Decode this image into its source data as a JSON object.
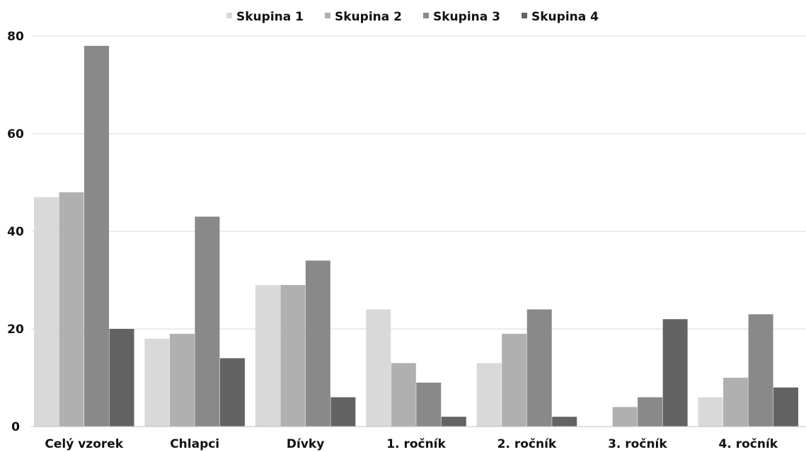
{
  "chart_data": {
    "type": "bar",
    "categories": [
      "Celý vzorek",
      "Chlapci",
      "Dívky",
      "1. ročník",
      "2. ročník",
      "3. ročník",
      "4. ročník"
    ],
    "series": [
      {
        "name": "Skupina 1",
        "color": "#d9d9d9",
        "values": [
          47,
          18,
          29,
          24,
          13,
          0,
          6
        ]
      },
      {
        "name": "Skupina 2",
        "color": "#b0b0b0",
        "values": [
          48,
          19,
          29,
          13,
          19,
          4,
          10
        ]
      },
      {
        "name": "Skupina 3",
        "color": "#898989",
        "values": [
          78,
          43,
          34,
          9,
          24,
          6,
          23
        ]
      },
      {
        "name": "Skupina 4",
        "color": "#636363",
        "values": [
          20,
          14,
          6,
          2,
          2,
          22,
          8
        ]
      }
    ],
    "yticks": [
      "0",
      "20",
      "40",
      "60",
      "80"
    ],
    "ylim": [
      0,
      80
    ],
    "grid": true,
    "legend": "top"
  }
}
